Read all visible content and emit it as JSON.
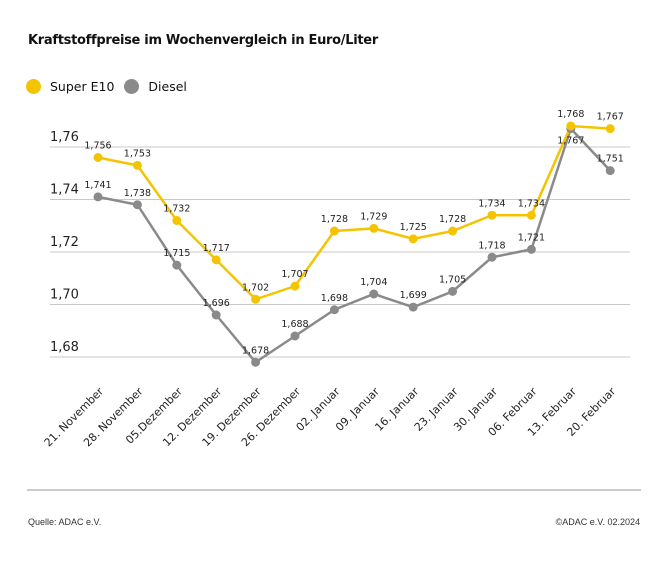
{
  "chart_data": {
    "type": "line",
    "title": "Kraftstoffpreise im Wochenvergleich in Euro/Liter",
    "categories": [
      "21. November",
      "28. November",
      "05.Dezember",
      "12. Dezember",
      "19. Dezember",
      "26. Dezember",
      "02. Januar",
      "09. Januar",
      "16. Januar",
      "23. Januar",
      "30. Januar",
      "06. Februar",
      "13. Februar",
      "20. Februar"
    ],
    "series": [
      {
        "name": "Super E10",
        "color": "#f5c400",
        "values": [
          1.756,
          1.753,
          1.732,
          1.717,
          1.702,
          1.707,
          1.728,
          1.729,
          1.725,
          1.728,
          1.734,
          1.734,
          1.768,
          1.767
        ]
      },
      {
        "name": "Diesel",
        "color": "#8a8a8a",
        "values": [
          1.741,
          1.738,
          1.715,
          1.696,
          1.678,
          1.688,
          1.698,
          1.704,
          1.699,
          1.705,
          1.718,
          1.721,
          1.767,
          1.751
        ]
      }
    ],
    "yticks": [
      "1,76",
      "1,74",
      "1,72",
      "1,70",
      "1,68"
    ],
    "ytick_values": [
      1.76,
      1.74,
      1.72,
      1.7,
      1.68
    ],
    "ylim": [
      1.675,
      1.775
    ],
    "grid": true,
    "legend": "top-left",
    "decimal_separator": ","
  },
  "footer": {
    "source": "Quelle: ADAC e.V.",
    "copyright": "©ADAC e.V. 02.2024"
  }
}
